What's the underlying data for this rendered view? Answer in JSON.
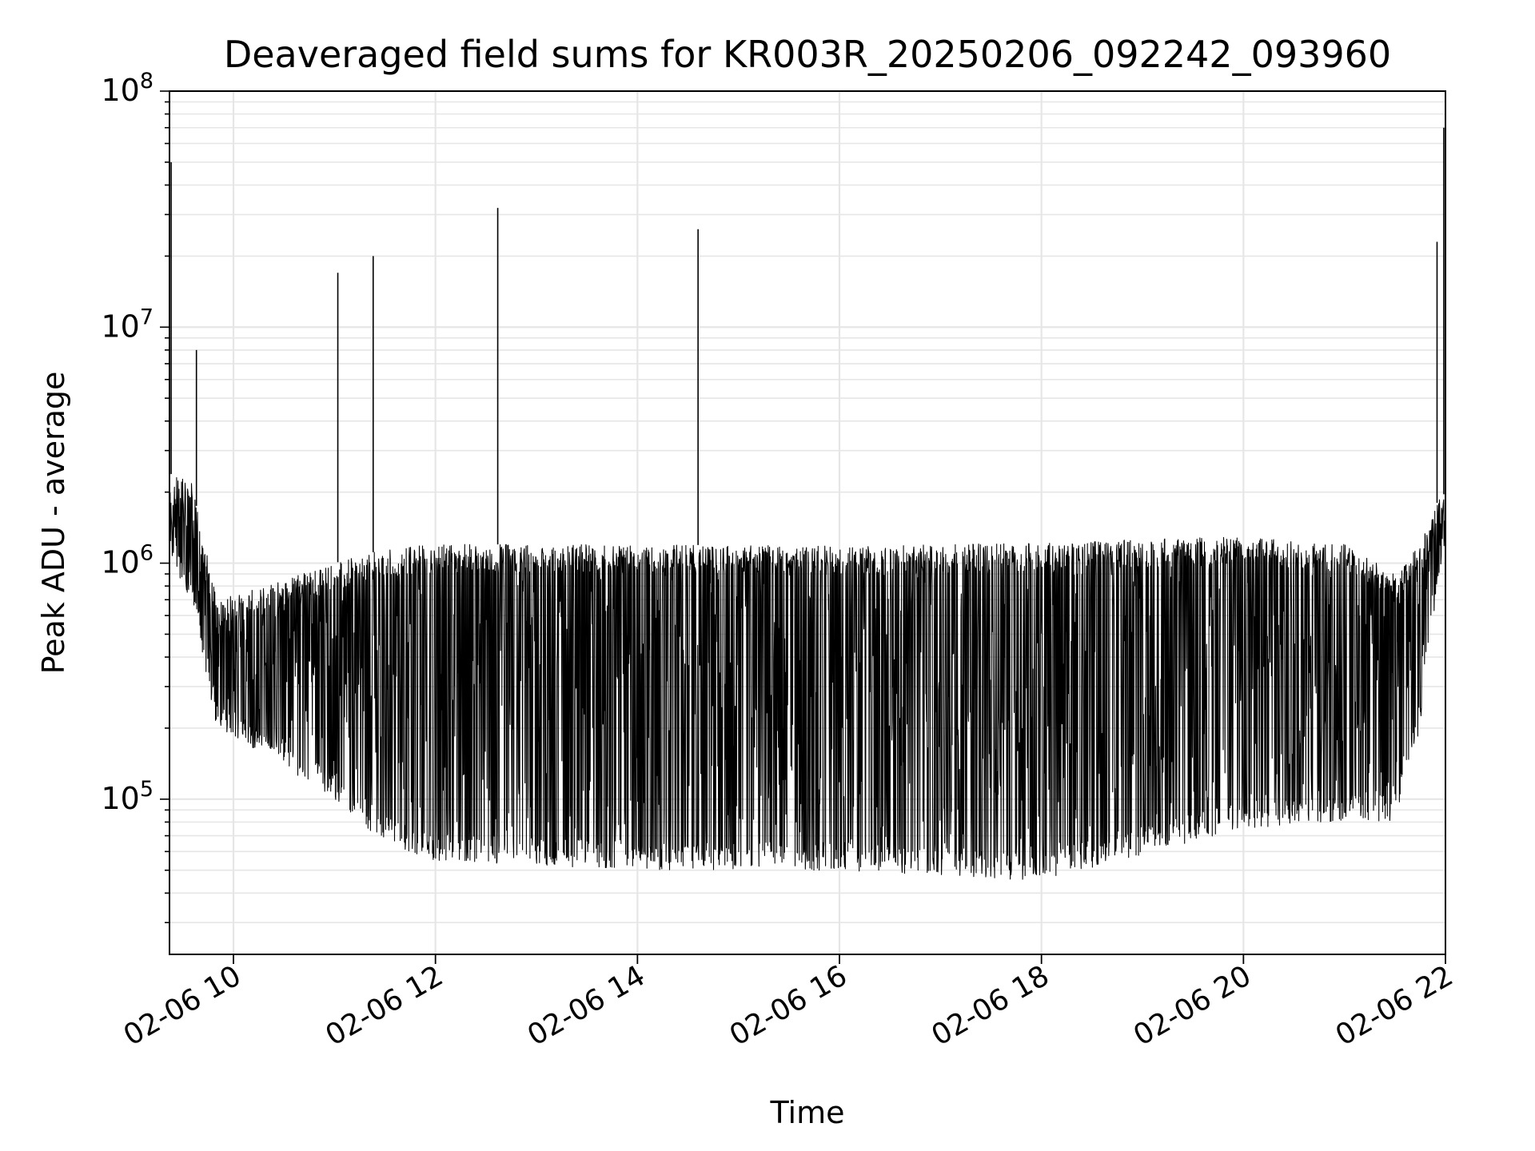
{
  "chart_data": {
    "type": "line",
    "title": "Deaveraged field sums for KR003R_20250206_092242_093960",
    "xlabel": "Time",
    "ylabel": "Peak ADU - average",
    "y_scale": "log",
    "ylim": [
      22000,
      100000000
    ],
    "xlim": [
      "2025-02-06 09:22",
      "2025-02-06 22:00"
    ],
    "grid": true,
    "line_color": "#000000",
    "x_ticks": [
      {
        "value": "2025-02-06 10:00",
        "label": "02-06 10"
      },
      {
        "value": "2025-02-06 12:00",
        "label": "02-06 12"
      },
      {
        "value": "2025-02-06 14:00",
        "label": "02-06 14"
      },
      {
        "value": "2025-02-06 16:00",
        "label": "02-06 16"
      },
      {
        "value": "2025-02-06 18:00",
        "label": "02-06 18"
      },
      {
        "value": "2025-02-06 20:00",
        "label": "02-06 20"
      },
      {
        "value": "2025-02-06 22:00",
        "label": "02-06 22"
      }
    ],
    "y_ticks": [
      {
        "value": 100000,
        "base": "10",
        "exp": "5"
      },
      {
        "value": 1000000,
        "base": "10",
        "exp": "6"
      },
      {
        "value": 10000000,
        "base": "10",
        "exp": "7"
      },
      {
        "value": 100000000,
        "base": "10",
        "exp": "8"
      }
    ],
    "envelope": {
      "x": [
        "2025-02-06 09:22",
        "2025-02-06 09:35",
        "2025-02-06 09:50",
        "2025-02-06 10:20",
        "2025-02-06 11:00",
        "2025-02-06 11:30",
        "2025-02-06 12:00",
        "2025-02-06 14:00",
        "2025-02-06 16:00",
        "2025-02-06 18:00",
        "2025-02-06 20:00",
        "2025-02-06 21:00",
        "2025-02-06 21:30",
        "2025-02-06 21:45",
        "2025-02-06 21:55",
        "2025-02-06 22:00"
      ],
      "upper": [
        2400000,
        2200000,
        700000,
        800000,
        1000000,
        1150000,
        1200000,
        1200000,
        1180000,
        1220000,
        1300000,
        1200000,
        900000,
        1200000,
        1800000,
        2000000
      ],
      "lower": [
        1000000,
        700000,
        200000,
        150000,
        100000,
        65000,
        55000,
        50000,
        50000,
        45000,
        75000,
        80000,
        80000,
        200000,
        800000,
        1200000
      ]
    },
    "spikes": [
      {
        "x": "2025-02-06 09:23",
        "y": 50000000
      },
      {
        "x": "2025-02-06 09:38",
        "y": 8000000
      },
      {
        "x": "2025-02-06 11:02",
        "y": 17000000
      },
      {
        "x": "2025-02-06 11:23",
        "y": 20000000
      },
      {
        "x": "2025-02-06 12:37",
        "y": 32000000
      },
      {
        "x": "2025-02-06 14:36",
        "y": 26000000
      },
      {
        "x": "2025-02-06 21:55",
        "y": 23000000
      },
      {
        "x": "2025-02-06 21:59",
        "y": 70000000
      }
    ]
  }
}
